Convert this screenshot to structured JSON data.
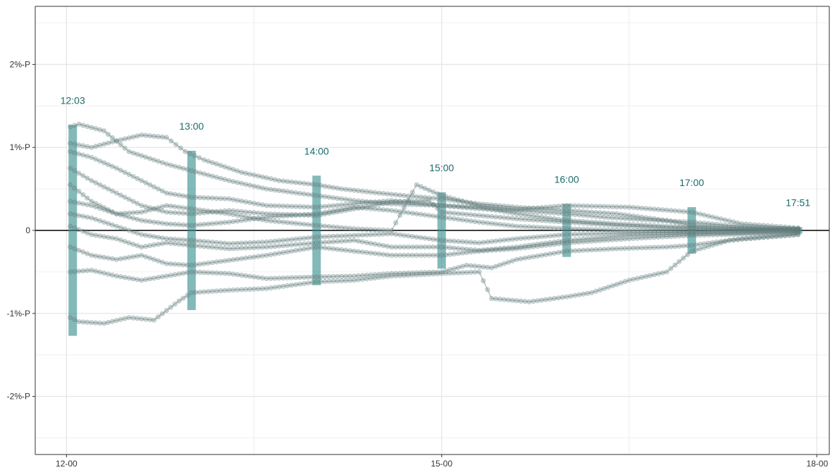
{
  "chart_data": {
    "type": "line",
    "title": "",
    "xlabel": "",
    "ylabel": "",
    "x_range_hours": [
      11.75,
      18.1
    ],
    "y_range": [
      -2.7,
      2.7
    ],
    "x_ticks": [
      {
        "value": 12,
        "label": "12-00"
      },
      {
        "value": 15,
        "label": "15-00"
      },
      {
        "value": 18,
        "label": "18-00"
      }
    ],
    "x_minor_gridlines": [
      13.5,
      16.5
    ],
    "y_ticks": [
      {
        "value": 2,
        "label": "2%-P"
      },
      {
        "value": 1,
        "label": "1%-P"
      },
      {
        "value": 0,
        "label": "0"
      },
      {
        "value": -1,
        "label": "-1%-P"
      },
      {
        "value": -2,
        "label": "-2%-P"
      }
    ],
    "y_minor_gridlines": [
      2.5,
      1.5,
      0.5,
      -0.5,
      -1.5,
      -2.5
    ],
    "grid": true,
    "legend": "none",
    "colors": {
      "series_line": "#9aa8a8",
      "series_point": "#5f7a7a",
      "range_bar": "#2e8b8b",
      "annotation_text": "#1b6b6b",
      "zero_line": "#000000",
      "grid": "#e6e6e6"
    },
    "range_bars": [
      {
        "time": 12.05,
        "low": -1.27,
        "high": 1.27,
        "label": "12:03"
      },
      {
        "time": 13.0,
        "low": -0.96,
        "high": 0.96,
        "label": "13:00"
      },
      {
        "time": 14.0,
        "low": -0.66,
        "high": 0.66,
        "label": "14:00"
      },
      {
        "time": 15.0,
        "low": -0.46,
        "high": 0.46,
        "label": "15:00"
      },
      {
        "time": 16.0,
        "low": -0.32,
        "high": 0.32,
        "label": "16:00"
      },
      {
        "time": 17.0,
        "low": -0.28,
        "high": 0.28,
        "label": "17:00"
      },
      {
        "time": 17.85,
        "low": -0.04,
        "high": 0.04,
        "label": "17:51"
      }
    ],
    "series": [
      {
        "values": [
          [
            12.03,
            1.25
          ],
          [
            12.1,
            1.28
          ],
          [
            12.3,
            1.2
          ],
          [
            12.5,
            0.95
          ],
          [
            12.8,
            0.8
          ],
          [
            13.0,
            0.72
          ],
          [
            13.3,
            0.6
          ],
          [
            13.6,
            0.5
          ],
          [
            14.0,
            0.42
          ],
          [
            14.3,
            0.36
          ],
          [
            14.6,
            0.32
          ],
          [
            15.0,
            0.3
          ],
          [
            15.3,
            0.26
          ],
          [
            15.6,
            0.24
          ],
          [
            16.0,
            0.2
          ],
          [
            16.3,
            0.16
          ],
          [
            16.6,
            0.13
          ],
          [
            17.0,
            0.1
          ],
          [
            17.3,
            0.06
          ],
          [
            17.6,
            0.03
          ],
          [
            17.85,
            0.02
          ]
        ]
      },
      {
        "values": [
          [
            12.03,
            1.05
          ],
          [
            12.2,
            1.0
          ],
          [
            12.4,
            1.08
          ],
          [
            12.6,
            1.15
          ],
          [
            12.8,
            1.12
          ],
          [
            12.95,
            0.95
          ],
          [
            13.1,
            0.85
          ],
          [
            13.4,
            0.7
          ],
          [
            13.7,
            0.6
          ],
          [
            14.0,
            0.55
          ],
          [
            14.2,
            0.5
          ],
          [
            14.5,
            0.45
          ],
          [
            14.7,
            0.42
          ],
          [
            15.0,
            0.38
          ],
          [
            15.3,
            0.32
          ],
          [
            15.6,
            0.28
          ],
          [
            16.0,
            0.24
          ],
          [
            16.4,
            0.2
          ],
          [
            16.8,
            0.12
          ],
          [
            17.0,
            0.06
          ],
          [
            17.4,
            0.03
          ],
          [
            17.85,
            0.02
          ]
        ]
      },
      {
        "values": [
          [
            12.03,
            0.95
          ],
          [
            12.2,
            0.88
          ],
          [
            12.4,
            0.75
          ],
          [
            12.6,
            0.6
          ],
          [
            12.8,
            0.45
          ],
          [
            13.0,
            0.4
          ],
          [
            13.3,
            0.38
          ],
          [
            13.6,
            0.3
          ],
          [
            14.0,
            0.28
          ],
          [
            14.3,
            0.32
          ],
          [
            14.6,
            0.36
          ],
          [
            15.0,
            0.3
          ],
          [
            15.3,
            0.28
          ],
          [
            15.6,
            0.2
          ],
          [
            16.0,
            0.12
          ],
          [
            16.4,
            0.08
          ],
          [
            16.8,
            0.05
          ],
          [
            17.2,
            0.02
          ],
          [
            17.85,
            0.01
          ]
        ]
      },
      {
        "values": [
          [
            12.03,
            0.75
          ],
          [
            12.2,
            0.6
          ],
          [
            12.4,
            0.45
          ],
          [
            12.6,
            0.3
          ],
          [
            12.8,
            0.22
          ],
          [
            13.0,
            0.2
          ],
          [
            13.3,
            0.24
          ],
          [
            13.6,
            0.2
          ],
          [
            14.0,
            0.18
          ],
          [
            14.3,
            0.26
          ],
          [
            14.6,
            0.34
          ],
          [
            14.9,
            0.36
          ],
          [
            15.0,
            0.22
          ],
          [
            15.3,
            0.18
          ],
          [
            15.6,
            0.14
          ],
          [
            16.0,
            0.1
          ],
          [
            16.4,
            0.06
          ],
          [
            16.8,
            0.03
          ],
          [
            17.2,
            0.02
          ],
          [
            17.85,
            0.0
          ]
        ]
      },
      {
        "values": [
          [
            12.03,
            0.55
          ],
          [
            12.2,
            0.35
          ],
          [
            12.4,
            0.2
          ],
          [
            12.6,
            0.12
          ],
          [
            12.8,
            0.08
          ],
          [
            13.0,
            0.06
          ],
          [
            13.3,
            0.1
          ],
          [
            13.6,
            0.16
          ],
          [
            14.0,
            0.2
          ],
          [
            14.3,
            0.28
          ],
          [
            14.6,
            0.24
          ],
          [
            15.0,
            0.16
          ],
          [
            15.3,
            0.1
          ],
          [
            15.6,
            0.05
          ],
          [
            16.0,
            0.02
          ],
          [
            16.5,
            0.0
          ],
          [
            17.0,
            -0.01
          ],
          [
            17.85,
            0.0
          ]
        ]
      },
      {
        "values": [
          [
            12.03,
            0.2
          ],
          [
            12.2,
            0.15
          ],
          [
            12.4,
            0.05
          ],
          [
            12.6,
            -0.05
          ],
          [
            12.8,
            -0.1
          ],
          [
            13.0,
            -0.12
          ],
          [
            13.3,
            -0.16
          ],
          [
            13.6,
            -0.14
          ],
          [
            14.0,
            -0.08
          ],
          [
            14.3,
            -0.06
          ],
          [
            14.6,
            -0.04
          ],
          [
            15.0,
            -0.12
          ],
          [
            15.3,
            -0.15
          ],
          [
            15.6,
            -0.1
          ],
          [
            16.0,
            -0.05
          ],
          [
            16.5,
            -0.03
          ],
          [
            17.0,
            -0.02
          ],
          [
            17.85,
            0.0
          ]
        ]
      },
      {
        "values": [
          [
            12.03,
            0.05
          ],
          [
            12.2,
            -0.05
          ],
          [
            12.4,
            -0.1
          ],
          [
            12.6,
            -0.2
          ],
          [
            12.8,
            -0.15
          ],
          [
            13.0,
            -0.18
          ],
          [
            13.3,
            -0.22
          ],
          [
            13.6,
            -0.2
          ],
          [
            14.0,
            -0.15
          ],
          [
            14.3,
            -0.12
          ],
          [
            14.6,
            -0.2
          ],
          [
            15.0,
            -0.2
          ],
          [
            15.3,
            -0.24
          ],
          [
            15.6,
            -0.2
          ],
          [
            16.0,
            -0.12
          ],
          [
            16.5,
            -0.06
          ],
          [
            17.0,
            -0.04
          ],
          [
            17.85,
            -0.02
          ]
        ]
      },
      {
        "values": [
          [
            12.03,
            -0.5
          ],
          [
            12.2,
            -0.48
          ],
          [
            12.4,
            -0.55
          ],
          [
            12.6,
            -0.6
          ],
          [
            12.8,
            -0.55
          ],
          [
            13.0,
            -0.5
          ],
          [
            13.3,
            -0.52
          ],
          [
            13.6,
            -0.58
          ],
          [
            14.0,
            -0.56
          ],
          [
            14.3,
            -0.55
          ],
          [
            14.6,
            -0.52
          ],
          [
            15.0,
            -0.5
          ],
          [
            15.2,
            -0.42
          ],
          [
            15.4,
            -0.45
          ],
          [
            15.6,
            -0.35
          ],
          [
            16.0,
            -0.25
          ],
          [
            16.4,
            -0.22
          ],
          [
            16.8,
            -0.2
          ],
          [
            17.0,
            -0.18
          ],
          [
            17.4,
            -0.1
          ],
          [
            17.85,
            -0.05
          ]
        ]
      },
      {
        "values": [
          [
            12.03,
            -1.05
          ],
          [
            12.1,
            -1.1
          ],
          [
            12.3,
            -1.12
          ],
          [
            12.5,
            -1.05
          ],
          [
            12.7,
            -1.08
          ],
          [
            12.9,
            -0.85
          ],
          [
            13.0,
            -0.75
          ],
          [
            13.3,
            -0.72
          ],
          [
            13.6,
            -0.7
          ],
          [
            14.0,
            -0.62
          ],
          [
            14.3,
            -0.6
          ],
          [
            14.6,
            -0.55
          ],
          [
            15.0,
            -0.52
          ],
          [
            15.3,
            -0.5
          ],
          [
            15.4,
            -0.82
          ],
          [
            15.7,
            -0.86
          ],
          [
            16.0,
            -0.8
          ],
          [
            16.2,
            -0.75
          ],
          [
            16.5,
            -0.6
          ],
          [
            16.8,
            -0.5
          ],
          [
            17.0,
            -0.25
          ],
          [
            17.3,
            -0.12
          ],
          [
            17.85,
            -0.05
          ]
        ]
      },
      {
        "values": [
          [
            12.03,
            -0.2
          ],
          [
            12.2,
            -0.3
          ],
          [
            12.4,
            -0.35
          ],
          [
            12.6,
            -0.3
          ],
          [
            12.8,
            -0.4
          ],
          [
            13.0,
            -0.42
          ],
          [
            13.3,
            -0.36
          ],
          [
            13.6,
            -0.3
          ],
          [
            14.0,
            -0.2
          ],
          [
            14.3,
            -0.25
          ],
          [
            14.6,
            -0.3
          ],
          [
            15.0,
            -0.3
          ],
          [
            15.3,
            -0.25
          ],
          [
            15.6,
            -0.22
          ],
          [
            16.0,
            -0.15
          ],
          [
            16.5,
            -0.1
          ],
          [
            17.0,
            -0.06
          ],
          [
            17.85,
            -0.03
          ]
        ]
      },
      {
        "values": [
          [
            12.03,
            0.35
          ],
          [
            12.2,
            0.3
          ],
          [
            12.4,
            0.2
          ],
          [
            12.6,
            0.22
          ],
          [
            12.8,
            0.3
          ],
          [
            13.0,
            0.26
          ],
          [
            13.3,
            0.2
          ],
          [
            13.6,
            0.12
          ],
          [
            14.0,
            0.06
          ],
          [
            14.3,
            0.02
          ],
          [
            14.6,
            0.0
          ],
          [
            14.8,
            0.55
          ],
          [
            15.0,
            0.42
          ],
          [
            15.3,
            0.3
          ],
          [
            15.6,
            0.25
          ],
          [
            16.0,
            0.3
          ],
          [
            16.5,
            0.28
          ],
          [
            17.0,
            0.22
          ],
          [
            17.4,
            0.08
          ],
          [
            17.85,
            0.03
          ]
        ]
      }
    ]
  }
}
